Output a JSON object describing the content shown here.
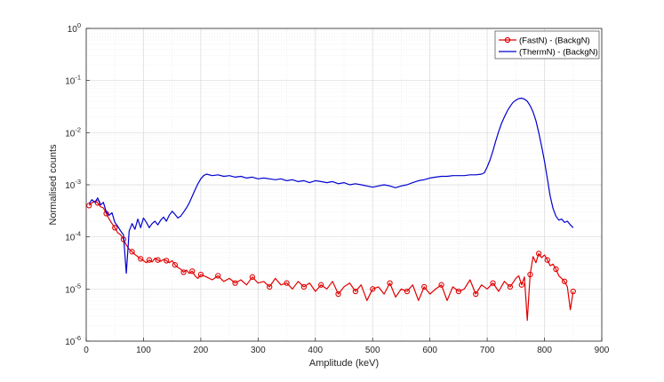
{
  "chart_data": {
    "type": "line",
    "xlabel": "Amplitude (keV)",
    "ylabel": "Normalised counts",
    "xlim": [
      0,
      900
    ],
    "ylim": [
      1e-06,
      1
    ],
    "yscale": "log",
    "grid": true,
    "minor_grid": true,
    "legend_position": "top-right",
    "x_ticks": [
      "0",
      "100",
      "200",
      "300",
      "400",
      "500",
      "600",
      "700",
      "800",
      "900"
    ],
    "y_ticks": [
      {
        "base": "10",
        "exp": "0"
      },
      {
        "base": "10",
        "exp": "-1"
      },
      {
        "base": "10",
        "exp": "-2"
      },
      {
        "base": "10",
        "exp": "-3"
      },
      {
        "base": "10",
        "exp": "-4"
      },
      {
        "base": "10",
        "exp": "-5"
      },
      {
        "base": "10",
        "exp": "-6"
      }
    ],
    "series": [
      {
        "name": "(FastN) - (BackgN)",
        "color": "#e00000",
        "marker": "circle",
        "x": [
          5,
          10,
          15,
          20,
          25,
          30,
          35,
          40,
          45,
          50,
          55,
          60,
          65,
          70,
          75,
          80,
          85,
          90,
          95,
          100,
          105,
          110,
          115,
          120,
          125,
          130,
          135,
          140,
          145,
          150,
          155,
          160,
          165,
          170,
          175,
          180,
          185,
          190,
          195,
          200,
          210,
          220,
          230,
          240,
          250,
          260,
          270,
          280,
          290,
          300,
          310,
          320,
          330,
          340,
          350,
          360,
          370,
          380,
          390,
          400,
          410,
          420,
          430,
          440,
          450,
          460,
          470,
          480,
          490,
          500,
          510,
          520,
          530,
          540,
          550,
          560,
          570,
          580,
          590,
          600,
          610,
          620,
          630,
          640,
          650,
          660,
          670,
          680,
          690,
          700,
          710,
          720,
          730,
          740,
          750,
          755,
          760,
          765,
          770,
          775,
          780,
          785,
          790,
          795,
          800,
          805,
          810,
          815,
          820,
          825,
          830,
          835,
          840,
          845,
          850
        ],
        "y": [
          0.0004,
          0.00045,
          0.00048,
          0.00045,
          0.00038,
          0.00036,
          0.00028,
          0.00022,
          0.00018,
          0.00015,
          0.00012,
          0.00011,
          9e-05,
          7e-05,
          5.8e-05,
          5.2e-05,
          4.6e-05,
          4.2e-05,
          3.8e-05,
          3.5e-05,
          3.2e-05,
          3.6e-05,
          3.3e-05,
          3.9e-05,
          3.6e-05,
          3.4e-05,
          3.7e-05,
          3.5e-05,
          3.2e-05,
          3.5e-05,
          2.9e-05,
          2.6e-05,
          2.4e-05,
          2.1e-05,
          2.3e-05,
          2e-05,
          2.2e-05,
          1.8e-05,
          1.6e-05,
          1.9e-05,
          1.7e-05,
          1.5e-05,
          1.8e-05,
          1.4e-05,
          1.6e-05,
          1.3e-05,
          1.5e-05,
          1.2e-05,
          1.7e-05,
          1.3e-05,
          1.4e-05,
          1.1e-05,
          1.6e-05,
          1.2e-05,
          1.3e-05,
          1e-05,
          1.4e-05,
          1.1e-05,
          1.3e-05,
          9e-06,
          1.2e-05,
          1e-05,
          1.4e-05,
          8e-06,
          1.1e-05,
          1.3e-05,
          9e-06,
          1.2e-05,
          6e-06,
          1e-05,
          1.1e-05,
          8e-06,
          1.3e-05,
          7e-06,
          1e-05,
          9e-06,
          1.2e-05,
          6e-06,
          1.1e-05,
          8e-06,
          1e-05,
          1.2e-05,
          6e-06,
          1.1e-05,
          9e-06,
          1e-05,
          1.5e-05,
          8e-06,
          1.2e-05,
          1e-05,
          1.3e-05,
          9e-06,
          1.4e-05,
          1.1e-05,
          1.6e-05,
          1.8e-05,
          1.2e-05,
          1.7e-05,
          2.5e-06,
          1.9e-05,
          4.2e-05,
          3.2e-05,
          4.8e-05,
          4e-05,
          4.5e-05,
          3.6e-05,
          2.8e-05,
          3e-05,
          2.4e-05,
          1.8e-05,
          1.6e-05,
          1.4e-05,
          1.1e-05,
          4e-06,
          9e-06
        ]
      },
      {
        "name": "(ThermN) - (BackgN)",
        "color": "#0000d0",
        "marker": "none",
        "x": [
          5,
          10,
          15,
          20,
          25,
          30,
          35,
          40,
          45,
          50,
          55,
          60,
          65,
          70,
          75,
          80,
          85,
          90,
          95,
          100,
          105,
          110,
          115,
          120,
          125,
          130,
          135,
          140,
          145,
          150,
          155,
          160,
          165,
          170,
          175,
          180,
          185,
          190,
          195,
          200,
          205,
          210,
          220,
          230,
          240,
          250,
          260,
          270,
          280,
          290,
          300,
          310,
          320,
          330,
          340,
          350,
          360,
          370,
          380,
          390,
          400,
          410,
          420,
          430,
          440,
          450,
          460,
          470,
          480,
          490,
          500,
          510,
          520,
          530,
          540,
          550,
          560,
          570,
          580,
          590,
          600,
          610,
          620,
          630,
          640,
          650,
          660,
          670,
          680,
          690,
          695,
          700,
          705,
          710,
          715,
          720,
          725,
          730,
          735,
          740,
          745,
          750,
          755,
          760,
          765,
          770,
          775,
          780,
          785,
          790,
          795,
          800,
          805,
          810,
          815,
          820,
          825,
          830,
          835,
          840,
          845,
          850
        ],
        "y": [
          0.00043,
          0.00052,
          0.00046,
          0.00056,
          0.00041,
          0.00046,
          0.0003,
          0.00026,
          0.00029,
          0.00019,
          0.00016,
          0.00013,
          0.00011,
          2e-05,
          0.00013,
          0.00018,
          0.00014,
          0.00022,
          0.00015,
          0.00023,
          0.00019,
          0.00015,
          0.00018,
          0.0002,
          0.00017,
          0.00021,
          0.00024,
          0.0002,
          0.00026,
          0.00031,
          0.00027,
          0.00023,
          0.00025,
          0.0003,
          0.00036,
          0.00045,
          0.0006,
          0.0008,
          0.00105,
          0.0013,
          0.0015,
          0.0016,
          0.0015,
          0.00155,
          0.00145,
          0.0015,
          0.0014,
          0.00145,
          0.00135,
          0.0014,
          0.0013,
          0.00135,
          0.0013,
          0.00125,
          0.0013,
          0.0012,
          0.00125,
          0.00115,
          0.0012,
          0.0011,
          0.0012,
          0.00115,
          0.0011,
          0.00115,
          0.00105,
          0.0011,
          0.001,
          0.00105,
          0.001,
          0.00095,
          0.0009,
          0.00095,
          0.001,
          0.00095,
          0.00088,
          0.00095,
          0.001,
          0.0011,
          0.0012,
          0.00125,
          0.00135,
          0.0014,
          0.00145,
          0.00145,
          0.0015,
          0.0015,
          0.0015,
          0.00155,
          0.00155,
          0.0016,
          0.0017,
          0.0022,
          0.003,
          0.0045,
          0.007,
          0.0105,
          0.015,
          0.02,
          0.026,
          0.032,
          0.038,
          0.042,
          0.045,
          0.046,
          0.044,
          0.04,
          0.033,
          0.025,
          0.017,
          0.01,
          0.0055,
          0.0028,
          0.0013,
          0.0006,
          0.00035,
          0.00025,
          0.00021,
          0.00022,
          0.00019,
          0.0002,
          0.00017,
          0.00015
        ]
      }
    ]
  }
}
